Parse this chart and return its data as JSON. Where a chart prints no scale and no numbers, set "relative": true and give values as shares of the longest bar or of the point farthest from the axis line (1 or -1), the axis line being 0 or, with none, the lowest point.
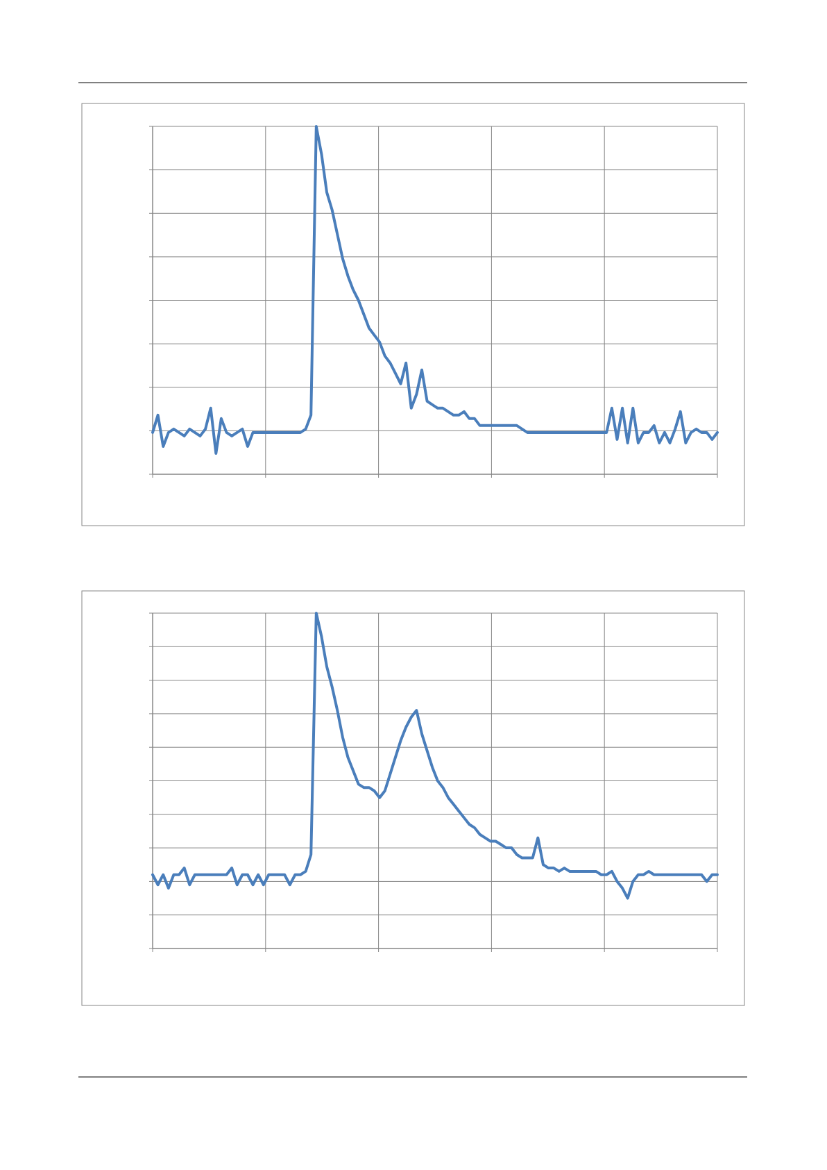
{
  "chart_data": [
    {
      "type": "line",
      "relative": true,
      "grid": true,
      "categories": [
        null,
        null,
        null,
        null,
        null,
        null,
        null,
        null,
        null,
        null,
        null,
        null,
        null,
        null,
        null,
        null,
        null,
        null,
        null,
        null,
        null,
        null,
        null,
        null,
        null,
        null,
        null,
        null,
        null,
        null,
        null,
        null,
        null,
        null,
        null,
        null,
        null,
        null,
        null,
        null,
        null,
        null,
        null,
        null,
        null,
        null,
        null,
        null,
        null,
        null,
        null,
        null,
        null,
        null,
        null,
        null,
        null,
        null,
        null,
        null,
        null,
        null,
        null,
        null,
        null,
        null,
        null,
        null,
        null,
        null,
        null,
        null,
        null,
        null,
        null,
        null,
        null,
        null,
        null,
        null,
        null,
        null,
        null,
        null,
        null,
        null,
        null,
        null,
        null,
        null,
        null,
        null,
        null,
        null,
        null,
        null,
        null,
        null,
        null,
        null,
        null,
        null,
        null,
        null,
        null,
        null,
        null,
        null
      ],
      "series": [
        {
          "color": "#4a7ebb",
          "values": [
            0.12,
            0.17,
            0.08,
            0.12,
            0.13,
            0.12,
            0.11,
            0.13,
            0.12,
            0.11,
            0.13,
            0.19,
            0.06,
            0.16,
            0.12,
            0.11,
            0.12,
            0.13,
            0.08,
            0.12,
            0.12,
            0.12,
            0.12,
            0.12,
            0.12,
            0.12,
            0.12,
            0.12,
            0.12,
            0.13,
            0.17,
            1.0,
            0.92,
            0.81,
            0.76,
            0.69,
            0.62,
            0.57,
            0.53,
            0.5,
            0.46,
            0.42,
            0.4,
            0.38,
            0.34,
            0.32,
            0.29,
            0.26,
            0.32,
            0.19,
            0.23,
            0.3,
            0.21,
            0.2,
            0.19,
            0.19,
            0.18,
            0.17,
            0.17,
            0.18,
            0.16,
            0.16,
            0.14,
            0.14,
            0.14,
            0.14,
            0.14,
            0.14,
            0.14,
            0.14,
            0.13,
            0.12,
            0.12,
            0.12,
            0.12,
            0.12,
            0.12,
            0.12,
            0.12,
            0.12,
            0.12,
            0.12,
            0.12,
            0.12,
            0.12,
            0.12,
            0.12,
            0.19,
            0.1,
            0.19,
            0.09,
            0.19,
            0.09,
            0.12,
            0.12,
            0.14,
            0.09,
            0.12,
            0.09,
            0.13,
            0.18,
            0.09,
            0.12,
            0.13,
            0.12,
            0.12,
            0.1,
            0.12
          ]
        }
      ]
    },
    {
      "type": "line",
      "relative": true,
      "grid": true,
      "categories": [
        null,
        null,
        null,
        null,
        null,
        null,
        null,
        null,
        null,
        null,
        null,
        null,
        null,
        null,
        null,
        null,
        null,
        null,
        null,
        null,
        null,
        null,
        null,
        null,
        null,
        null,
        null,
        null,
        null,
        null,
        null,
        null,
        null,
        null,
        null,
        null,
        null,
        null,
        null,
        null,
        null,
        null,
        null,
        null,
        null,
        null,
        null,
        null,
        null,
        null,
        null,
        null,
        null,
        null,
        null,
        null,
        null,
        null,
        null,
        null,
        null,
        null,
        null,
        null,
        null,
        null,
        null,
        null,
        null,
        null,
        null,
        null,
        null,
        null,
        null,
        null,
        null,
        null,
        null,
        null,
        null,
        null,
        null,
        null,
        null,
        null,
        null,
        null,
        null,
        null,
        null,
        null,
        null,
        null,
        null,
        null,
        null,
        null,
        null,
        null,
        null,
        null,
        null,
        null,
        null,
        null,
        null,
        null
      ],
      "series": [
        {
          "color": "#4a7ebb",
          "values": [
            0.22,
            0.19,
            0.22,
            0.18,
            0.22,
            0.22,
            0.24,
            0.19,
            0.22,
            0.22,
            0.22,
            0.22,
            0.22,
            0.22,
            0.22,
            0.24,
            0.19,
            0.22,
            0.22,
            0.19,
            0.22,
            0.19,
            0.22,
            0.22,
            0.22,
            0.22,
            0.19,
            0.22,
            0.22,
            0.23,
            0.28,
            1.0,
            0.93,
            0.84,
            0.78,
            0.71,
            0.63,
            0.57,
            0.53,
            0.49,
            0.48,
            0.48,
            0.47,
            0.45,
            0.47,
            0.52,
            0.57,
            0.62,
            0.66,
            0.69,
            0.71,
            0.64,
            0.59,
            0.54,
            0.5,
            0.48,
            0.45,
            0.43,
            0.41,
            0.39,
            0.37,
            0.36,
            0.34,
            0.33,
            0.32,
            0.32,
            0.31,
            0.3,
            0.3,
            0.28,
            0.27,
            0.27,
            0.27,
            0.33,
            0.25,
            0.24,
            0.24,
            0.23,
            0.24,
            0.23,
            0.23,
            0.23,
            0.23,
            0.23,
            0.23,
            0.22,
            0.22,
            0.23,
            0.2,
            0.18,
            0.15,
            0.2,
            0.22,
            0.22,
            0.23,
            0.22,
            0.22,
            0.22,
            0.22,
            0.22,
            0.22,
            0.22,
            0.22,
            0.22,
            0.22,
            0.2,
            0.22,
            0.22
          ]
        }
      ]
    }
  ]
}
